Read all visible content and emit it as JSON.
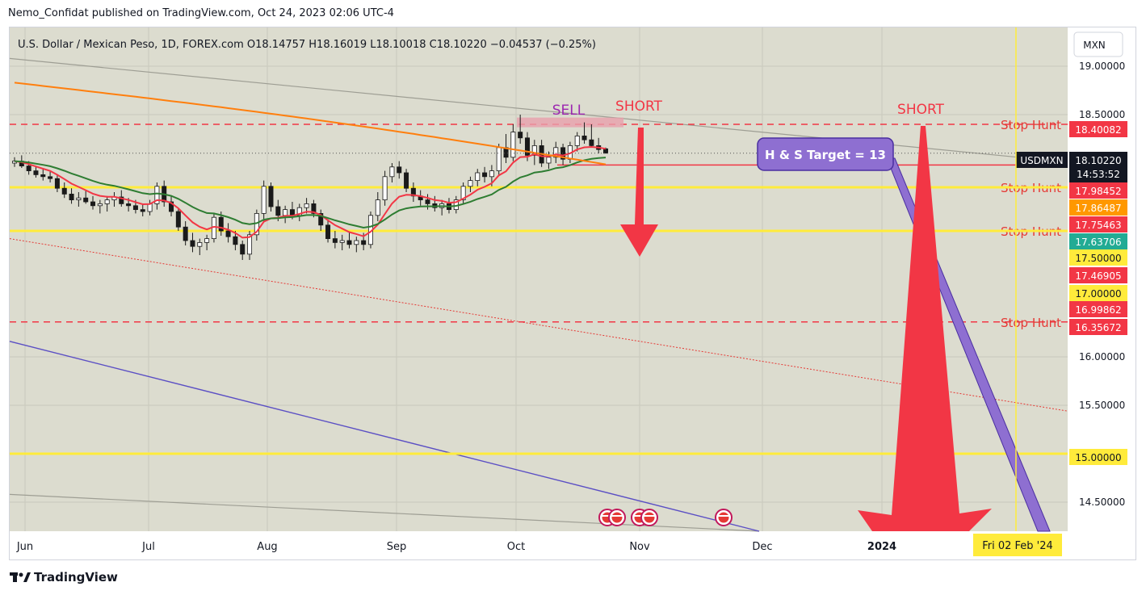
{
  "header": {
    "published_by": "Nemo_Confidat published on TradingView.com, Oct 24, 2023 02:06 UTC-4"
  },
  "footer": {
    "brand": "TradingView"
  },
  "chart_data": {
    "type": "candlestick",
    "symbol_line": {
      "name": "U.S. Dollar / Mexican Peso, 1D, FOREX.com",
      "O": "O18.14757",
      "H": "H18.16019",
      "L": "L18.10018",
      "C": "C18.10220",
      "change": "−0.04537 (−0.25%)"
    },
    "currency_label": "MXN",
    "symbol_tag": "USDMXN",
    "last_price": "18.10220",
    "countdown": "14:53:52",
    "y_ticks": [
      "19.00000",
      "18.50000",
      "16.00000",
      "15.50000",
      "14.50000"
    ],
    "y_range": [
      14.2,
      19.4
    ],
    "x_labels": [
      "Jun",
      "Jul",
      "Aug",
      "Sep",
      "Oct",
      "Nov",
      "Dec",
      "2024"
    ],
    "x_cursor_label": "Fri 02 Feb '24",
    "price_tags": [
      {
        "value": "18.40082",
        "color": "#f23645"
      },
      {
        "value": "17.98452",
        "color": "#f23645"
      },
      {
        "value": "17.86487",
        "color": "#ff9800"
      },
      {
        "value": "17.75463",
        "color": "#f23645"
      },
      {
        "value": "17.63706",
        "color": "#22ab94"
      },
      {
        "value": "17.50000",
        "color": "#ffeb3b"
      },
      {
        "value": "17.46905",
        "color": "#f23645"
      },
      {
        "value": "17.00000",
        "color": "#ffeb3b"
      },
      {
        "value": "16.99862",
        "color": "#f23645"
      },
      {
        "value": "16.35672",
        "color": "#f23645"
      },
      {
        "value": "15.00000",
        "color": "#ffeb3b"
      }
    ],
    "levels": [
      {
        "price": 18.4,
        "style": "dashed",
        "color": "#f23645",
        "label": "Stop Hunt"
      },
      {
        "price": 17.98,
        "style": "solid",
        "color": "#f23645",
        "label": ""
      },
      {
        "price": 17.75,
        "style": "dashed",
        "color": "#f23645",
        "label": "Stop Hunt"
      },
      {
        "price": 17.75,
        "style": "solid-thick",
        "color": "#ffeb3b",
        "label": ""
      },
      {
        "price": 17.3,
        "style": "dashed",
        "color": "#f23645",
        "label": "Stop Hunt"
      },
      {
        "price": 17.3,
        "style": "solid-thick",
        "color": "#ffeb3b",
        "label": ""
      },
      {
        "price": 16.36,
        "style": "dashed",
        "color": "#f23645",
        "label": "Stop Hunt"
      },
      {
        "price": 15.0,
        "style": "solid-thick",
        "color": "#ffeb3b",
        "label": ""
      }
    ],
    "annotations": {
      "sell": "SELL",
      "short1": "SHORT",
      "short2": "SHORT",
      "target": "H & S Target = 13"
    },
    "candles": [
      [
        18.0,
        18.06,
        17.96,
        18.02
      ],
      [
        18.02,
        18.08,
        17.95,
        17.97
      ],
      [
        17.97,
        18.02,
        17.88,
        17.92
      ],
      [
        17.92,
        17.96,
        17.85,
        17.88
      ],
      [
        17.88,
        17.95,
        17.82,
        17.86
      ],
      [
        17.86,
        17.92,
        17.8,
        17.84
      ],
      [
        17.84,
        17.88,
        17.7,
        17.74
      ],
      [
        17.74,
        17.8,
        17.64,
        17.68
      ],
      [
        17.68,
        17.74,
        17.58,
        17.62
      ],
      [
        17.62,
        17.7,
        17.55,
        17.64
      ],
      [
        17.64,
        17.72,
        17.58,
        17.6
      ],
      [
        17.6,
        17.66,
        17.52,
        17.56
      ],
      [
        17.56,
        17.62,
        17.48,
        17.58
      ],
      [
        17.58,
        17.66,
        17.5,
        17.62
      ],
      [
        17.62,
        17.7,
        17.55,
        17.65
      ],
      [
        17.65,
        17.72,
        17.55,
        17.58
      ],
      [
        17.58,
        17.64,
        17.5,
        17.56
      ],
      [
        17.56,
        17.62,
        17.48,
        17.52
      ],
      [
        17.52,
        17.58,
        17.45,
        17.5
      ],
      [
        17.5,
        17.62,
        17.46,
        17.58
      ],
      [
        17.58,
        17.8,
        17.52,
        17.76
      ],
      [
        17.76,
        17.82,
        17.55,
        17.6
      ],
      [
        17.6,
        17.66,
        17.45,
        17.5
      ],
      [
        17.5,
        17.54,
        17.3,
        17.34
      ],
      [
        17.34,
        17.4,
        17.15,
        17.2
      ],
      [
        17.2,
        17.28,
        17.08,
        17.14
      ],
      [
        17.14,
        17.22,
        17.05,
        17.18
      ],
      [
        17.18,
        17.26,
        17.1,
        17.22
      ],
      [
        17.22,
        17.48,
        17.18,
        17.44
      ],
      [
        17.44,
        17.5,
        17.25,
        17.3
      ],
      [
        17.3,
        17.38,
        17.18,
        17.24
      ],
      [
        17.24,
        17.3,
        17.1,
        17.16
      ],
      [
        17.16,
        17.2,
        17.0,
        17.06
      ],
      [
        17.06,
        17.3,
        17.0,
        17.26
      ],
      [
        17.26,
        17.52,
        17.2,
        17.48
      ],
      [
        17.48,
        17.82,
        17.4,
        17.76
      ],
      [
        17.76,
        17.8,
        17.5,
        17.55
      ],
      [
        17.55,
        17.62,
        17.4,
        17.46
      ],
      [
        17.46,
        17.56,
        17.38,
        17.52
      ],
      [
        17.52,
        17.6,
        17.42,
        17.46
      ],
      [
        17.46,
        17.58,
        17.4,
        17.54
      ],
      [
        17.54,
        17.64,
        17.48,
        17.58
      ],
      [
        17.58,
        17.62,
        17.44,
        17.48
      ],
      [
        17.48,
        17.52,
        17.3,
        17.36
      ],
      [
        17.36,
        17.42,
        17.18,
        17.22
      ],
      [
        17.22,
        17.3,
        17.12,
        17.18
      ],
      [
        17.18,
        17.26,
        17.1,
        17.2
      ],
      [
        17.2,
        17.28,
        17.12,
        17.16
      ],
      [
        17.16,
        17.24,
        17.08,
        17.2
      ],
      [
        17.2,
        17.28,
        17.1,
        17.16
      ],
      [
        17.16,
        17.5,
        17.12,
        17.46
      ],
      [
        17.46,
        17.7,
        17.4,
        17.62
      ],
      [
        17.62,
        17.92,
        17.56,
        17.86
      ],
      [
        17.86,
        18.0,
        17.8,
        17.96
      ],
      [
        17.96,
        18.02,
        17.84,
        17.9
      ],
      [
        17.9,
        17.94,
        17.7,
        17.74
      ],
      [
        17.74,
        17.8,
        17.6,
        17.66
      ],
      [
        17.66,
        17.72,
        17.56,
        17.62
      ],
      [
        17.62,
        17.68,
        17.52,
        17.58
      ],
      [
        17.58,
        17.66,
        17.5,
        17.54
      ],
      [
        17.54,
        17.62,
        17.46,
        17.58
      ],
      [
        17.58,
        17.64,
        17.48,
        17.52
      ],
      [
        17.52,
        17.66,
        17.48,
        17.62
      ],
      [
        17.62,
        17.8,
        17.58,
        17.76
      ],
      [
        17.76,
        17.86,
        17.7,
        17.82
      ],
      [
        17.82,
        17.94,
        17.76,
        17.9
      ],
      [
        17.9,
        17.96,
        17.8,
        17.86
      ],
      [
        17.86,
        17.98,
        17.76,
        17.92
      ],
      [
        17.92,
        18.2,
        17.88,
        18.16
      ],
      [
        18.16,
        18.3,
        18.0,
        18.06
      ],
      [
        18.06,
        18.4,
        18.02,
        18.32
      ],
      [
        18.32,
        18.5,
        18.2,
        18.26
      ],
      [
        18.26,
        18.32,
        18.02,
        18.08
      ],
      [
        18.08,
        18.24,
        17.98,
        18.18
      ],
      [
        18.18,
        18.24,
        17.96,
        18.0
      ],
      [
        18.0,
        18.12,
        17.94,
        18.06
      ],
      [
        18.06,
        18.22,
        18.0,
        18.16
      ],
      [
        18.16,
        18.2,
        17.98,
        18.04
      ],
      [
        18.04,
        18.22,
        18.0,
        18.18
      ],
      [
        18.18,
        18.32,
        18.12,
        18.28
      ],
      [
        18.28,
        18.42,
        18.2,
        18.24
      ],
      [
        18.24,
        18.4,
        18.16,
        18.18
      ],
      [
        18.18,
        18.26,
        18.1,
        18.14
      ],
      [
        18.14757,
        18.16019,
        18.10018,
        18.1022
      ]
    ]
  }
}
